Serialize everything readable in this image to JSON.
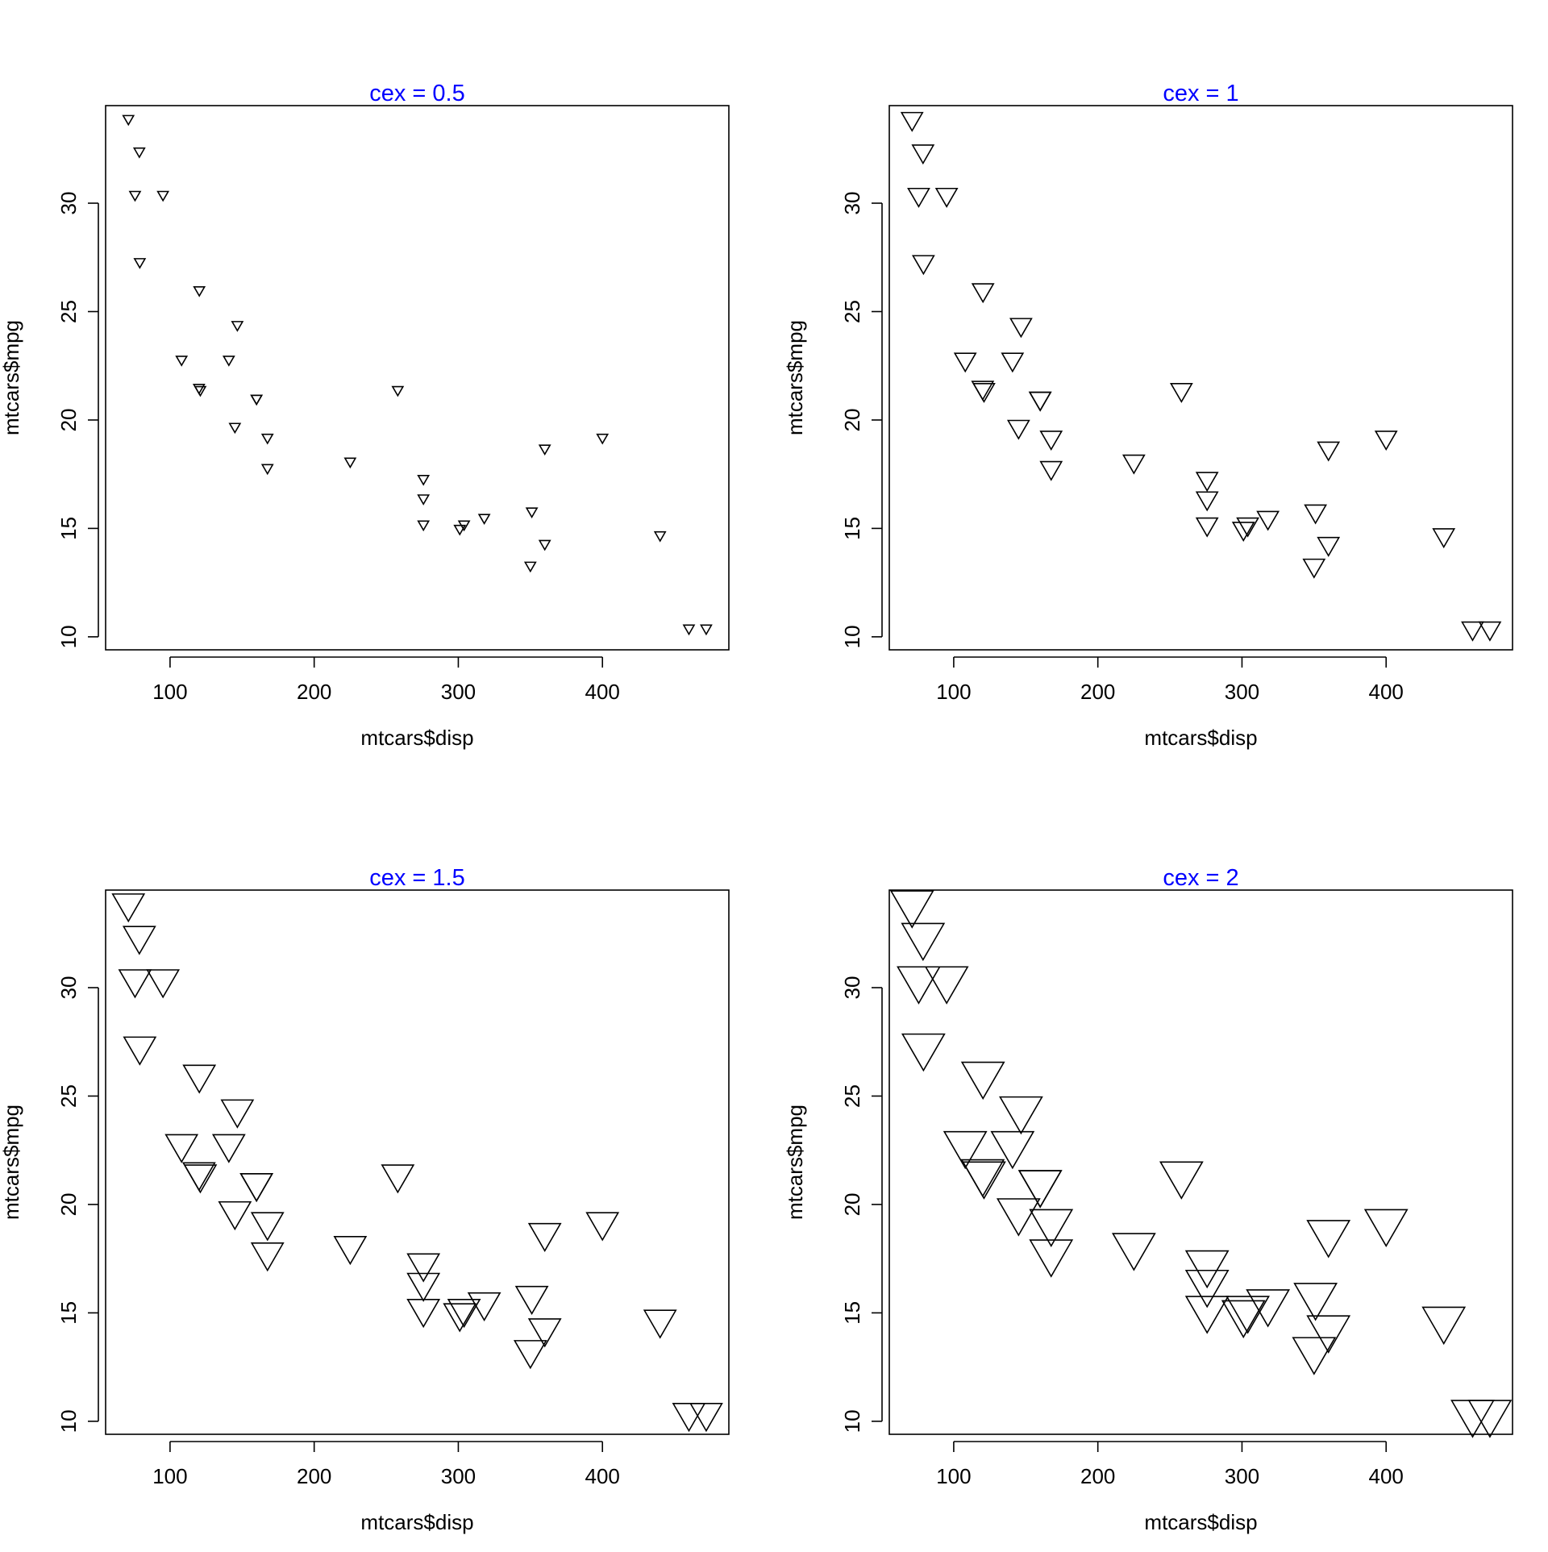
{
  "colors": {
    "title": "#0000ff",
    "points": "#000000",
    "background": "#ffffff"
  },
  "chart_data": [
    {
      "type": "scatter",
      "title": "cex =  0.5",
      "cex": 0.5,
      "marker": "triangle-down-open",
      "xlabel": "mtcars$disp",
      "ylabel": "mtcars$mpg",
      "xticks": [
        100,
        200,
        300,
        400
      ],
      "yticks": [
        10,
        15,
        20,
        25,
        30
      ],
      "xlim": [
        55.3,
        487.7
      ],
      "ylim": [
        9.4,
        34.5
      ],
      "grid": false
    },
    {
      "type": "scatter",
      "title": "cex =  1",
      "cex": 1,
      "marker": "triangle-down-open",
      "xlabel": "mtcars$disp",
      "ylabel": "mtcars$mpg",
      "xticks": [
        100,
        200,
        300,
        400
      ],
      "yticks": [
        10,
        15,
        20,
        25,
        30
      ],
      "xlim": [
        55.3,
        487.7
      ],
      "ylim": [
        9.4,
        34.5
      ],
      "grid": false
    },
    {
      "type": "scatter",
      "title": "cex =  1.5",
      "cex": 1.5,
      "marker": "triangle-down-open",
      "xlabel": "mtcars$disp",
      "ylabel": "mtcars$mpg",
      "xticks": [
        100,
        200,
        300,
        400
      ],
      "yticks": [
        10,
        15,
        20,
        25,
        30
      ],
      "xlim": [
        55.3,
        487.7
      ],
      "ylim": [
        9.4,
        34.5
      ],
      "grid": false
    },
    {
      "type": "scatter",
      "title": "cex =  2",
      "cex": 2,
      "marker": "triangle-down-open",
      "xlabel": "mtcars$disp",
      "ylabel": "mtcars$mpg",
      "xticks": [
        100,
        200,
        300,
        400
      ],
      "yticks": [
        10,
        15,
        20,
        25,
        30
      ],
      "xlim": [
        55.3,
        487.7
      ],
      "ylim": [
        9.4,
        34.5
      ],
      "grid": false
    }
  ],
  "points": {
    "x": [
      160,
      160,
      108,
      258,
      360,
      225,
      360,
      146.7,
      140.8,
      167.6,
      167.6,
      275.8,
      275.8,
      275.8,
      472,
      460,
      440,
      78.7,
      75.7,
      71.1,
      120.1,
      318,
      304,
      350,
      400,
      79,
      120.3,
      95.1,
      351,
      145,
      301,
      121
    ],
    "y": [
      21,
      21,
      22.8,
      21.4,
      18.7,
      18.1,
      14.3,
      24.4,
      22.8,
      19.2,
      17.8,
      16.4,
      17.3,
      15.2,
      10.4,
      10.4,
      14.7,
      32.4,
      30.4,
      33.9,
      21.5,
      15.5,
      15.2,
      13.3,
      19.2,
      27.3,
      26,
      30.4,
      15.8,
      19.7,
      15,
      21.4
    ]
  }
}
